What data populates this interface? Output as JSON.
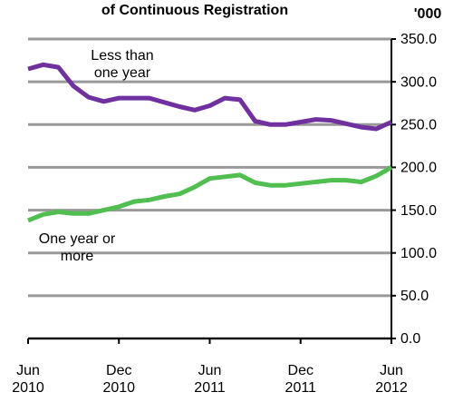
{
  "chart_data": {
    "type": "line",
    "title": "of Continuous Registration",
    "unit_label": "'000",
    "categories": [
      "Jun 2010",
      null,
      null,
      null,
      null,
      null,
      "Dec 2010",
      null,
      null,
      null,
      null,
      null,
      "Jun 2011",
      null,
      null,
      null,
      null,
      null,
      "Dec 2011",
      null,
      null,
      null,
      null,
      null,
      "Jun 2012"
    ],
    "series": [
      {
        "name": "Less than one year",
        "color": "#7030a0",
        "values": [
          315,
          320,
          317,
          295,
          282,
          277,
          281,
          281,
          281,
          276,
          271,
          267,
          272,
          281,
          279,
          254,
          250,
          250,
          253,
          256,
          255,
          251,
          247,
          245,
          253
        ]
      },
      {
        "name": "One year or more",
        "color": "#50bf50",
        "values": [
          138,
          145,
          148,
          146,
          146,
          150,
          154,
          160,
          162,
          166,
          169,
          177,
          187,
          189,
          191,
          182,
          179,
          179,
          181,
          183,
          185,
          185,
          183,
          190,
          200
        ]
      }
    ],
    "ylim": [
      0,
      350
    ],
    "yticks": [
      {
        "value": 0,
        "label": "0.0"
      },
      {
        "value": 50,
        "label": "50.0"
      },
      {
        "value": 100,
        "label": "100.0"
      },
      {
        "value": 150,
        "label": "150.0"
      },
      {
        "value": 200,
        "label": "200.0"
      },
      {
        "value": 250,
        "label": "250.0"
      },
      {
        "value": 300,
        "label": "300.0"
      },
      {
        "value": 350,
        "label": "350.0"
      }
    ],
    "grid": true,
    "y_axis_side": "right"
  }
}
